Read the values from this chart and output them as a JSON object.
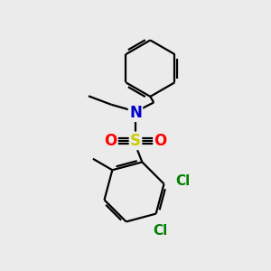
{
  "bg_color": "#ebebeb",
  "bond_color": "#000000",
  "N_color": "#0000cc",
  "S_color": "#cccc00",
  "O_color": "#ff0000",
  "Cl_color": "#008000",
  "lw": 1.6,
  "figsize": [
    3.0,
    3.0
  ],
  "dpi": 100,
  "xlim": [
    0,
    10
  ],
  "ylim": [
    0,
    10
  ]
}
